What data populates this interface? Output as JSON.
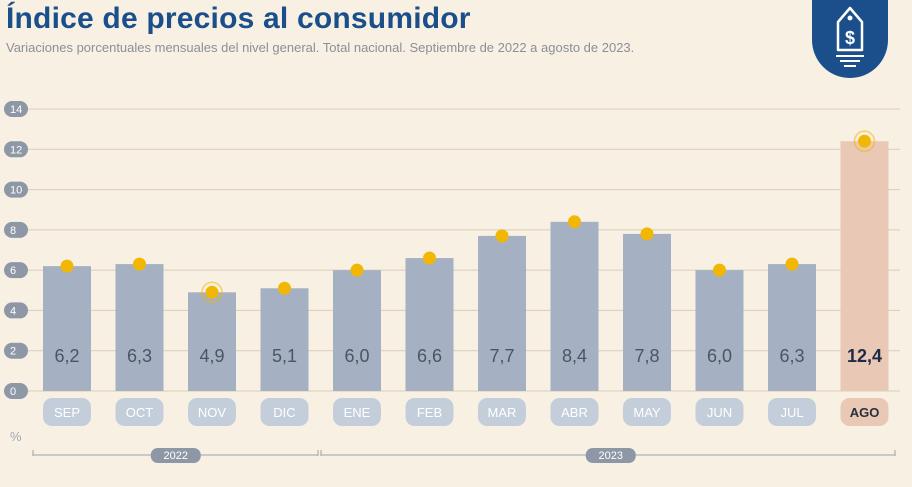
{
  "header": {
    "title": "Índice de precios al consumidor",
    "subtitle": "Variaciones porcentuales mensuales del nivel general. Total nacional. Septiembre de 2022 a agosto de 2023."
  },
  "logo": {
    "icon": "price-tag-dollar-icon",
    "color": "#1b4f8c"
  },
  "colors": {
    "bar": "#a5b0c2",
    "bar_highlight": "#e9c8b6",
    "label_pill": "#c4cedb",
    "label_pill_highlight": "#e9c8b6",
    "dot": "#f2b705",
    "value_text": "#4b5563",
    "value_text_highlight": "#1f2a44",
    "axis_pill": "#8e97a6"
  },
  "chart_data": {
    "type": "bar",
    "categories": [
      "SEP",
      "OCT",
      "NOV",
      "DIC",
      "ENE",
      "FEB",
      "MAR",
      "ABR",
      "MAY",
      "JUN",
      "JUL",
      "AGO"
    ],
    "values": [
      6.2,
      6.3,
      4.9,
      5.1,
      6.0,
      6.6,
      7.7,
      8.4,
      7.8,
      6.0,
      6.3,
      12.4
    ],
    "value_labels": [
      "6,2",
      "6,3",
      "4,9",
      "5,1",
      "6,0",
      "6,6",
      "7,7",
      "8,4",
      "7,8",
      "6,0",
      "6,3",
      "12,4"
    ],
    "highlight_index": 11,
    "ringed_indices": [
      2,
      11
    ],
    "ylim": [
      0,
      14
    ],
    "yticks": [
      0,
      2,
      4,
      6,
      8,
      10,
      12,
      14
    ],
    "ylabel": "%",
    "grid": true,
    "years": [
      {
        "label": "2022",
        "from": 0,
        "to": 3
      },
      {
        "label": "2023",
        "from": 4,
        "to": 11
      }
    ]
  }
}
